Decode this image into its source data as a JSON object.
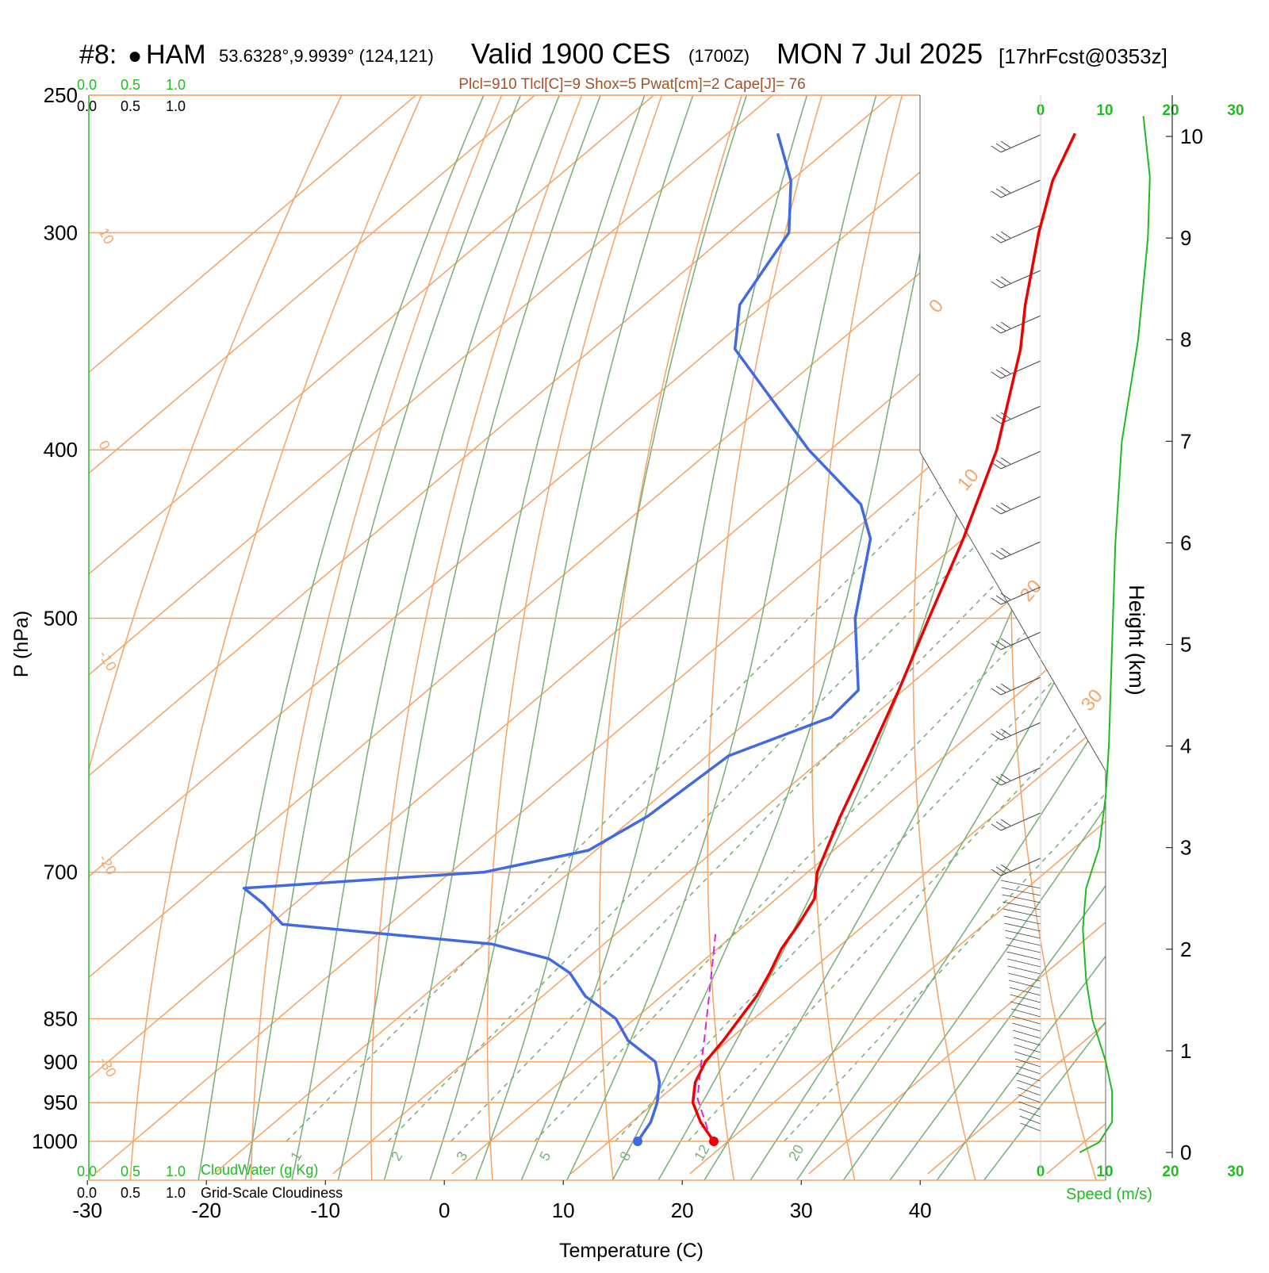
{
  "header": {
    "station_num": "#8:",
    "station_dot": "●",
    "station_name": "HAM",
    "coords": "53.6328°,9.9939° (124,121)",
    "valid": "Valid 1900 CES",
    "zulu": "(1700Z)",
    "date": "MON 7 Jul 2025",
    "fcst": "[17hrFcst@0353z]"
  },
  "indices": "Plcl=910 Tlcl[C]=9 Shox=5 Pwat[cm]=2 Cape[J]= 76",
  "cloud_scale": {
    "ticks": [
      "0.0",
      "0.5",
      "1.0"
    ],
    "cloudwater_label": "CloudWater (g/Kg)",
    "cloudiness_label": "Grid-Scale Cloudiness"
  },
  "speed_axis": {
    "ticks": [
      "0",
      "10",
      "20",
      "30"
    ],
    "label": "Speed (m/s)"
  },
  "height_axis": {
    "label": "Height (km)",
    "ticks": [
      "0",
      "1",
      "2",
      "3",
      "4",
      "5",
      "6",
      "7",
      "8",
      "9",
      "10"
    ]
  },
  "pressure_labels": [
    "250",
    "300",
    "400",
    "500",
    "700",
    "850",
    "900",
    "950",
    "1000"
  ],
  "mixing_ratio_labels": [
    "1",
    "2",
    "3",
    "5",
    "8",
    "12",
    "20"
  ],
  "dry_adiabat_labels": [
    "10",
    "0",
    "-10",
    "-20",
    "-30"
  ],
  "hodo_labels": [
    "0",
    "10",
    "20",
    "30"
  ],
  "colors": {
    "temperature": "#ee0000",
    "dewpoint": "#4169e1",
    "parcel": "#e020e0",
    "isotherm": "#f5a66a",
    "moist_adiabat": "#7fb07f",
    "mixing_ratio": "#7fb07f",
    "speed": "#22b822",
    "green_label": "#22bb22",
    "index_text": "#a0522d"
  },
  "chart_data": {
    "type": "skew-t",
    "xlabel": "Temperature (C)",
    "ylabel": "P (hPa)",
    "x_ticks": [
      -30,
      -20,
      -10,
      0,
      10,
      20,
      30,
      40
    ],
    "pressure_range": [
      1000,
      250
    ],
    "temperature": [
      [
        1000,
        18.8
      ],
      [
        975,
        15.8
      ],
      [
        950,
        13.2
      ],
      [
        925,
        11.4
      ],
      [
        900,
        10.2
      ],
      [
        875,
        9.6
      ],
      [
        850,
        8.8
      ],
      [
        825,
        8.0
      ],
      [
        800,
        6.8
      ],
      [
        775,
        5.4
      ],
      [
        750,
        4.4
      ],
      [
        725,
        3.2
      ],
      [
        700,
        0.8
      ],
      [
        650,
        -2.8
      ],
      [
        600,
        -6.4
      ],
      [
        550,
        -10.4
      ],
      [
        500,
        -15.0
      ],
      [
        450,
        -20.0
      ],
      [
        400,
        -26.0
      ],
      [
        350,
        -34.0
      ],
      [
        330,
        -38.0
      ],
      [
        300,
        -44.0
      ],
      [
        280,
        -48.0
      ],
      [
        263,
        -50.8
      ]
    ],
    "dewpoint": [
      [
        1000,
        12.4
      ],
      [
        975,
        11.6
      ],
      [
        950,
        10.2
      ],
      [
        925,
        8.4
      ],
      [
        900,
        6.0
      ],
      [
        875,
        1.6
      ],
      [
        850,
        -1.6
      ],
      [
        825,
        -6.4
      ],
      [
        800,
        -10.0
      ],
      [
        785,
        -13.2
      ],
      [
        770,
        -19.4
      ],
      [
        750,
        -39.0
      ],
      [
        730,
        -42.6
      ],
      [
        715,
        -45.8
      ],
      [
        700,
        -27.2
      ],
      [
        680,
        -20.6
      ],
      [
        650,
        -19.0
      ],
      [
        600,
        -18.2
      ],
      [
        570,
        -13.4
      ],
      [
        550,
        -13.8
      ],
      [
        500,
        -21.2
      ],
      [
        450,
        -27.8
      ],
      [
        430,
        -32.0
      ],
      [
        400,
        -41.8
      ],
      [
        350,
        -58.0
      ],
      [
        330,
        -62.0
      ],
      [
        300,
        -65.0
      ],
      [
        280,
        -70.0
      ],
      [
        263,
        -75.8
      ]
    ],
    "parcel": [
      [
        1000,
        18.6
      ],
      [
        975,
        16.2
      ],
      [
        945,
        13.2
      ],
      [
        910,
        10.6
      ],
      [
        875,
        8.0
      ],
      [
        825,
        4.0
      ],
      [
        760,
        -1.6
      ]
    ],
    "wind_speed_profile_ms": [
      [
        0.0,
        6
      ],
      [
        0.1,
        9
      ],
      [
        0.3,
        11
      ],
      [
        0.6,
        11
      ],
      [
        0.9,
        10
      ],
      [
        1.3,
        8
      ],
      [
        1.7,
        7
      ],
      [
        2.2,
        6.5
      ],
      [
        2.6,
        7
      ],
      [
        3.0,
        9
      ],
      [
        3.5,
        10
      ],
      [
        4.0,
        10.5
      ],
      [
        5.0,
        11
      ],
      [
        6.0,
        11.5
      ],
      [
        7.0,
        12.5
      ],
      [
        8.0,
        15
      ],
      [
        9.0,
        16.5
      ],
      [
        9.6,
        16.8
      ],
      [
        10.2,
        15.8
      ]
    ],
    "speed_xlim": [
      0,
      20
    ],
    "height_km_range": [
      0,
      10.2
    ]
  }
}
